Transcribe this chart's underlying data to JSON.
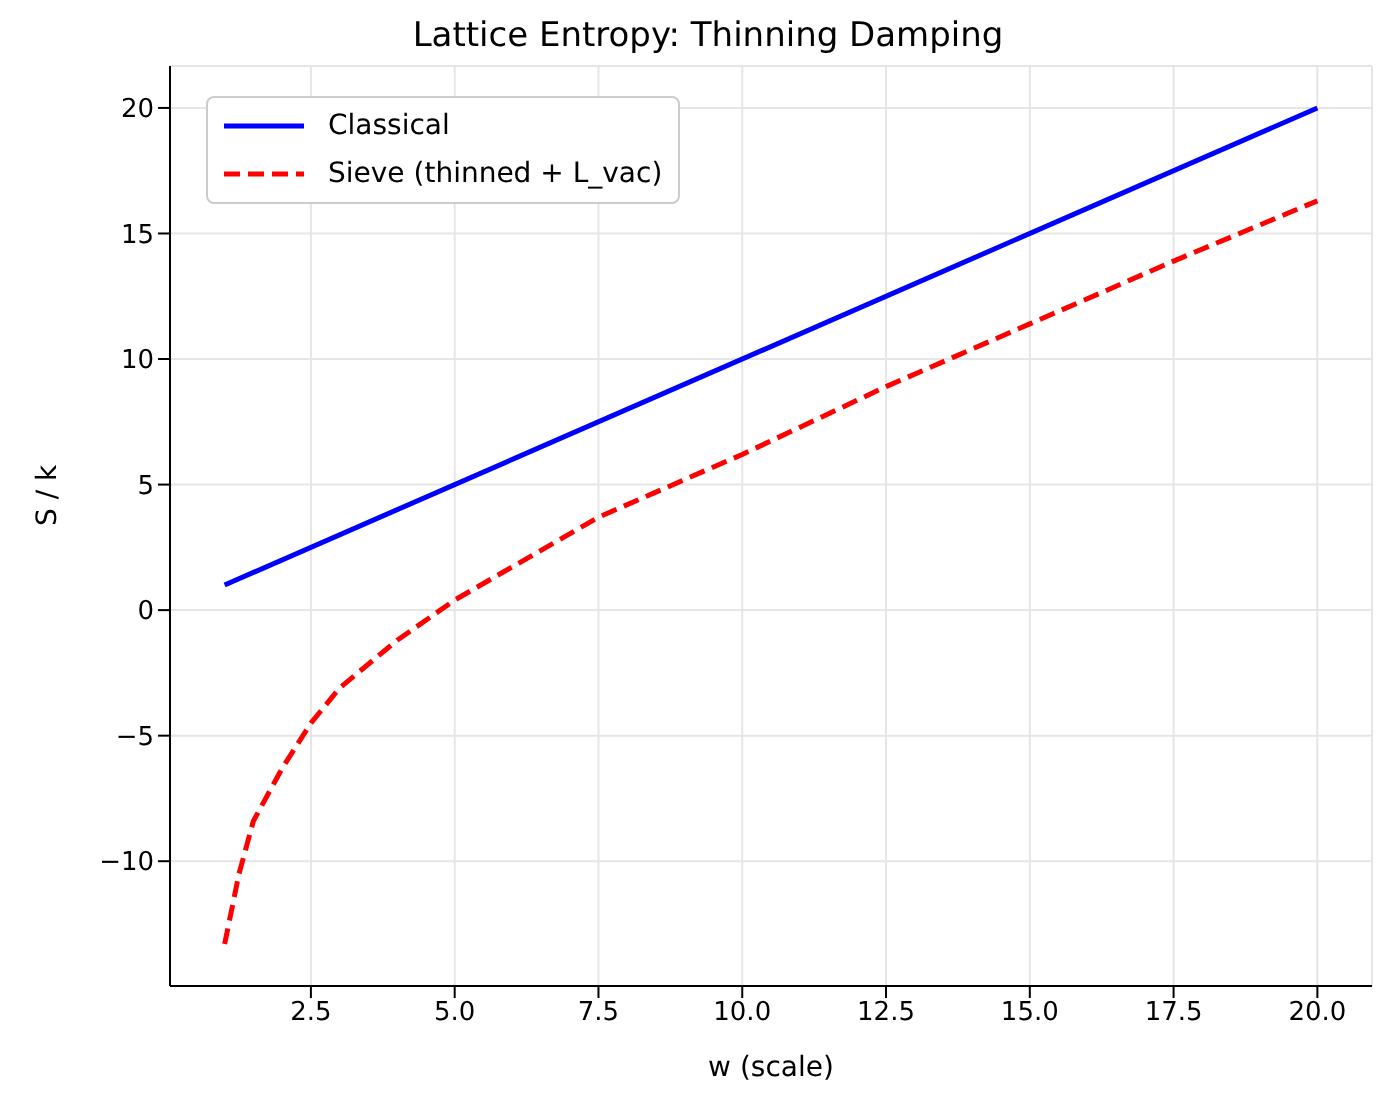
{
  "chart_data": {
    "type": "line",
    "title": "Lattice Entropy: Thinning Damping",
    "xlabel": "w (scale)",
    "ylabel": "S / k",
    "xlim": [
      0.05,
      20.95
    ],
    "ylim": [
      -14.97,
      21.67
    ],
    "xticks": [
      2.5,
      {
        "value": 5,
        "label": "5.0"
      },
      7.5,
      {
        "value": 10,
        "label": "10.0"
      },
      12.5,
      {
        "value": 15,
        "label": "15.0"
      },
      17.5,
      {
        "value": 20,
        "label": "20.0"
      }
    ],
    "yticks": [
      -10,
      -5,
      0,
      5,
      10,
      15,
      20
    ],
    "grid": true,
    "legend": "top left",
    "series": [
      {
        "name": "Classical",
        "color": "#0000ff",
        "line_style": "solid",
        "x": [
          1,
          20
        ],
        "values": [
          1,
          20
        ]
      },
      {
        "name": "Sieve (thinned + L_vac)",
        "color": "#ff0000",
        "line_style": "dashed",
        "x": [
          1,
          1.25,
          1.5,
          2,
          2.5,
          3,
          4,
          5,
          7.5,
          10,
          12.5,
          15,
          17.5,
          20
        ],
        "values": [
          -13.3,
          -10.5,
          -8.4,
          -6.3,
          -4.5,
          -3.1,
          -1.2,
          0.4,
          3.7,
          6.2,
          8.9,
          11.4,
          13.9,
          16.3
        ]
      }
    ]
  }
}
